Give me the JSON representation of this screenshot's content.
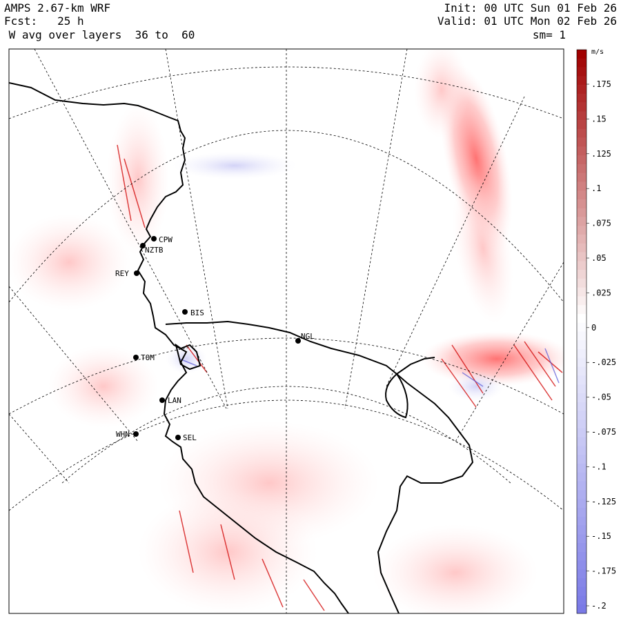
{
  "header": {
    "model": "AMPS 2.67-km WRF",
    "forecast": "Fcst:   25 h",
    "field": " W avg over layers  36 to  60",
    "init": "Init: 00 UTC Sun 01 Feb 26",
    "valid": "Valid: 01 UTC Mon 02 Feb 26",
    "smoothing": "sm= 1"
  },
  "colorbar": {
    "units": "m/s",
    "labels": [
      ".175",
      ".15",
      ".125",
      ".1",
      ".075",
      ".05",
      ".025",
      "0",
      "-.025",
      "-.05",
      "-.075",
      "-.1",
      "-.125",
      "-.15",
      "-.175",
      "-.2"
    ],
    "positive_color": "#a00000",
    "negative_color": "#7a7ae6"
  },
  "stations": [
    {
      "id": "CPW"
    },
    {
      "id": "NZTB"
    },
    {
      "id": "REY"
    },
    {
      "id": "BIS"
    },
    {
      "id": "NGL"
    },
    {
      "id": "TOM"
    },
    {
      "id": "LAN"
    },
    {
      "id": "WHN"
    },
    {
      "id": "SEL"
    }
  ]
}
